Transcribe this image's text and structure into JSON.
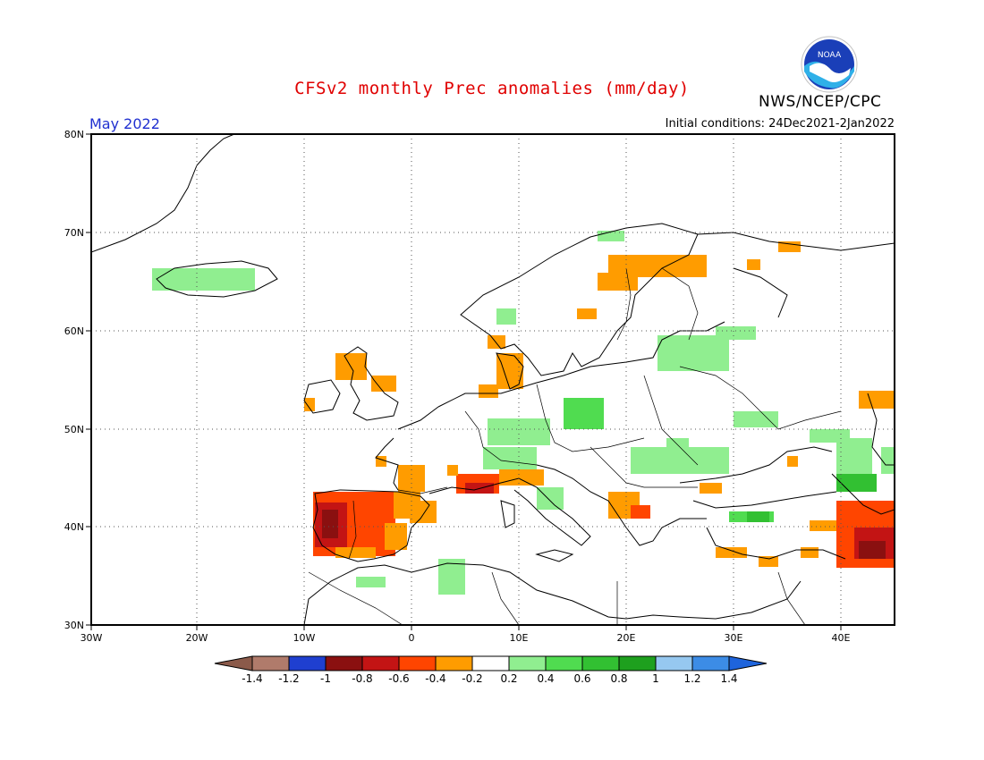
{
  "header": {
    "title": "CFSv2 monthly Prec anomalies (mm/day)",
    "agency": "NWS/NCEP/CPC",
    "month": "May 2022",
    "initial_conditions": "Initial conditions: 24Dec2021-2Jan2022",
    "logo_text": "NOAA"
  },
  "map": {
    "lat_labels": [
      "80N",
      "70N",
      "60N",
      "50N",
      "40N",
      "30N"
    ],
    "lon_labels": [
      "30W",
      "20W",
      "10W",
      "0",
      "10E",
      "20E",
      "30E",
      "40E"
    ]
  },
  "colorbar": {
    "labels": [
      "-1.4",
      "-1.2",
      "-1",
      "-0.8",
      "-0.6",
      "-0.4",
      "-0.2",
      "0.2",
      "0.4",
      "0.6",
      "0.8",
      "1",
      "1.2",
      "1.4"
    ],
    "colors": [
      "#8b5a4a",
      "#b07b6b",
      "#1f3fd0",
      "#8a1010",
      "#c31414",
      "#ff4500",
      "#ff9c00",
      "#ffffff",
      "#90ee90",
      "#50dc50",
      "#32c032",
      "#1ea01e",
      "#96c8f0",
      "#3c8ce6",
      "#1e64dc"
    ]
  }
}
